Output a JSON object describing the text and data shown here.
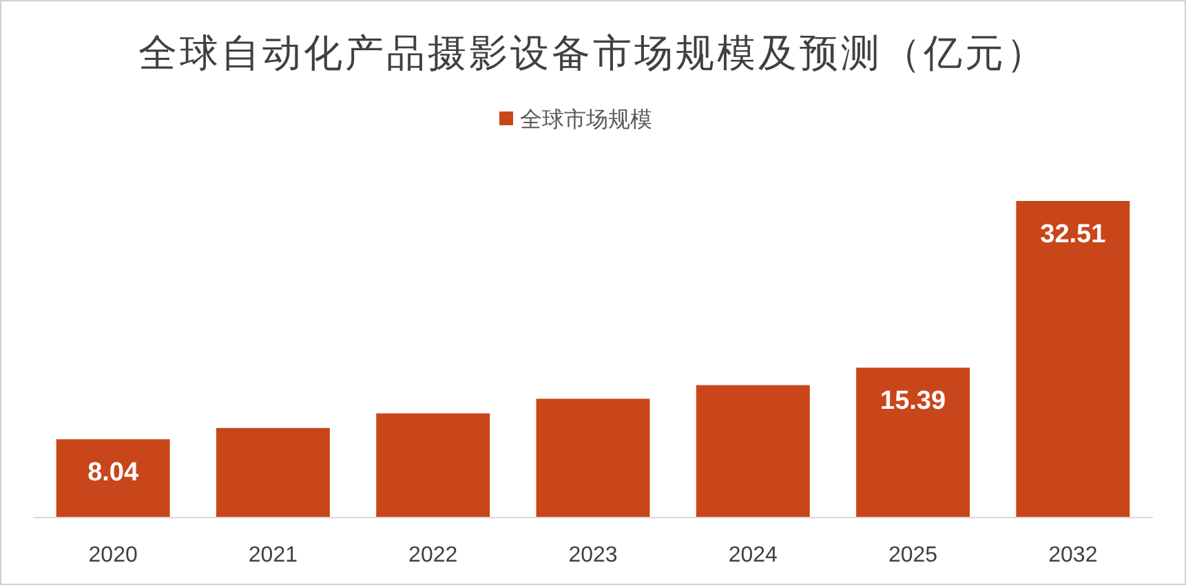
{
  "chart_data": {
    "type": "bar",
    "title": "全球自动化产品摄影设备市场规模及预测（亿元）",
    "categories": [
      "2020",
      "2021",
      "2022",
      "2023",
      "2024",
      "2025",
      "2032"
    ],
    "series": [
      {
        "name": "全球市场规模",
        "color": "#c9461b",
        "values": [
          8.04,
          9.2,
          10.7,
          12.2,
          13.6,
          15.39,
          32.51
        ],
        "value_labels": [
          "8.04",
          null,
          null,
          null,
          null,
          "15.39",
          "32.51"
        ]
      }
    ],
    "legend": "top"
  }
}
